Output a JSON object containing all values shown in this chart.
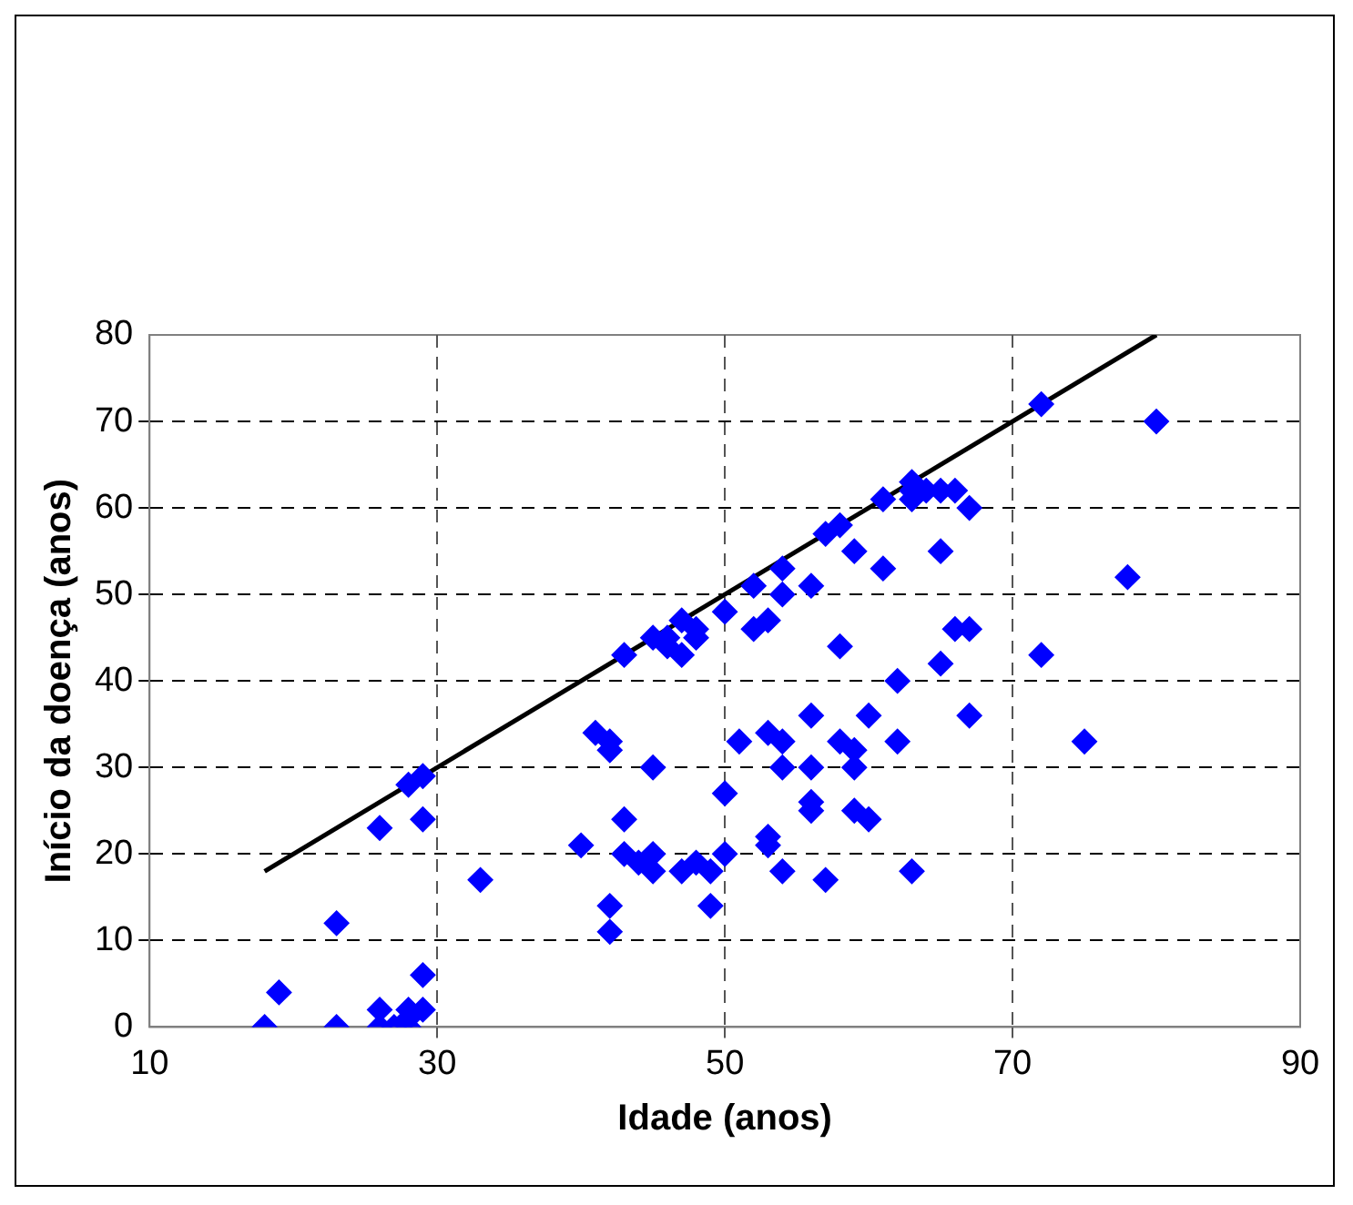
{
  "chart_data": {
    "type": "scatter",
    "xlabel": "Idade (anos)",
    "ylabel": "Início da doença (anos)",
    "xlim": [
      10,
      90
    ],
    "xticks": [
      10,
      30,
      50,
      70,
      90
    ],
    "ylim": [
      0,
      80
    ],
    "yticks": [
      0,
      10,
      20,
      30,
      40,
      50,
      60,
      70,
      80
    ],
    "grid": true,
    "legend": false,
    "series": [
      {
        "color": "#0000ff",
        "marker": "diamond",
        "x": [
          18,
          19,
          23,
          23,
          26,
          26,
          26,
          27,
          28,
          28,
          28,
          28,
          29,
          29,
          29,
          29,
          33,
          40,
          41,
          42,
          42,
          42,
          42,
          43,
          43,
          43,
          44,
          45,
          45,
          45,
          45,
          46,
          46,
          47,
          47,
          47,
          48,
          48,
          48,
          49,
          49,
          50,
          50,
          50,
          51,
          52,
          52,
          53,
          53,
          53,
          53,
          54,
          54,
          54,
          54,
          54,
          56,
          56,
          56,
          56,
          56,
          57,
          57,
          58,
          58,
          58,
          59,
          59,
          59,
          59,
          60,
          60,
          61,
          61,
          62,
          62,
          63,
          63,
          63,
          63,
          64,
          65,
          65,
          65,
          66,
          66,
          67,
          67,
          67,
          72,
          72,
          75,
          78,
          80
        ],
        "values": [
          0,
          4,
          12,
          0,
          2,
          0,
          23,
          0,
          1,
          2,
          28,
          0,
          29,
          24,
          6,
          2,
          17,
          21,
          34,
          33,
          32,
          14,
          11,
          43,
          24,
          20,
          19,
          45,
          30,
          20,
          18,
          44,
          45,
          47,
          43,
          18,
          46,
          45,
          19,
          14,
          18,
          48,
          27,
          20,
          33,
          46,
          51,
          47,
          34,
          22,
          21,
          53,
          50,
          33,
          30,
          18,
          51,
          36,
          30,
          26,
          25,
          57,
          17,
          58,
          44,
          33,
          55,
          32,
          30,
          25,
          36,
          24,
          61,
          53,
          40,
          33,
          63,
          62,
          61,
          18,
          62,
          62,
          55,
          42,
          62,
          46,
          60,
          46,
          36,
          72,
          43,
          33,
          52,
          70
        ]
      },
      {
        "type": "line",
        "color": "#000000",
        "line_style": "solid",
        "x": [
          18,
          80
        ],
        "values": [
          18,
          80
        ]
      }
    ]
  }
}
